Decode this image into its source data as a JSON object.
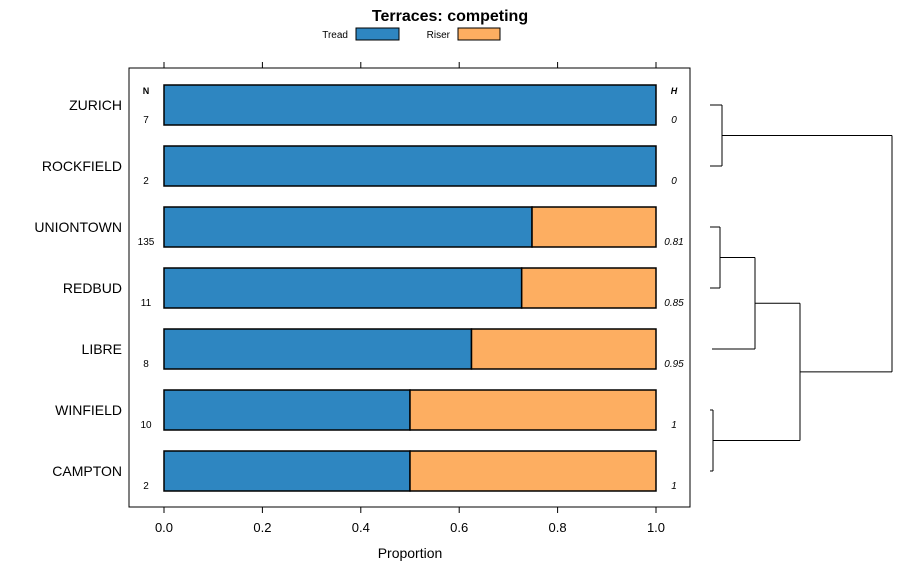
{
  "chart_data": {
    "type": "bar",
    "orientation": "horizontal",
    "stacked": true,
    "title": "Terraces: competing",
    "xlabel": "Proportion",
    "ylabel": "",
    "xlim": [
      0,
      1
    ],
    "xticks": [
      "0.0",
      "0.2",
      "0.4",
      "0.6",
      "0.8",
      "1.0"
    ],
    "legend": {
      "placement": "top",
      "entries": [
        {
          "name": "Tread",
          "color": "#2e86c1"
        },
        {
          "name": "Riser",
          "color": "#fdae61"
        }
      ]
    },
    "n_header": "N",
    "h_header": "H",
    "categories": [
      "ZURICH",
      "ROCKFIELD",
      "UNIONTOWN",
      "REDBUD",
      "LIBRE",
      "WINFIELD",
      "CAMPTON"
    ],
    "n_values": [
      "7",
      "2",
      "135",
      "11",
      "8",
      "10",
      "2"
    ],
    "h_values": [
      "0",
      "0",
      "0.81",
      "0.85",
      "0.95",
      "1",
      "1"
    ],
    "series": [
      {
        "name": "Tread",
        "values": [
          1.0,
          1.0,
          0.748,
          0.727,
          0.625,
          0.5,
          0.5
        ]
      },
      {
        "name": "Riser",
        "values": [
          0.0,
          0.0,
          0.252,
          0.273,
          0.375,
          0.5,
          0.5
        ]
      }
    ],
    "dendrogram": {
      "description": "hierarchical clustering of rows",
      "clusters": [
        [
          "ZURICH",
          "ROCKFIELD"
        ],
        [
          [
            [
              "UNIONTOWN",
              "REDBUD"
            ],
            "LIBRE"
          ],
          [
            "WINFIELD",
            "CAMPTON"
          ]
        ]
      ]
    }
  }
}
